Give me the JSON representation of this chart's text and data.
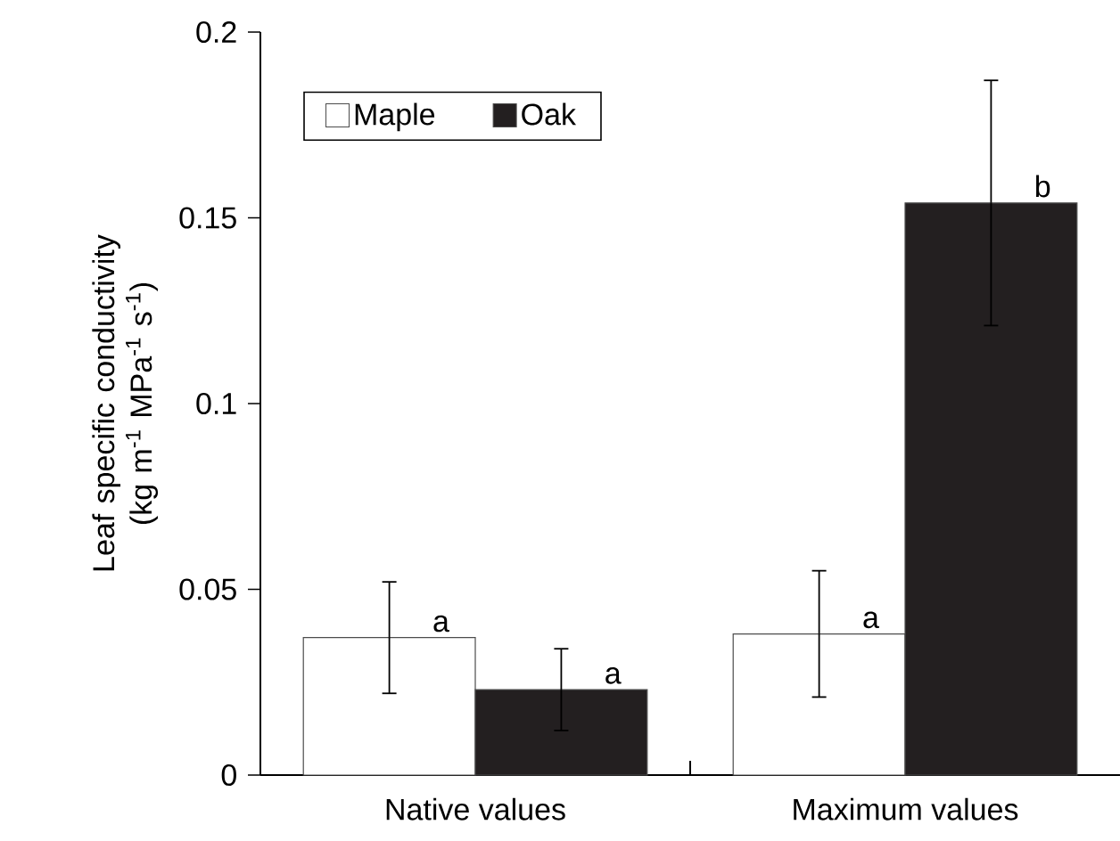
{
  "chart_data": {
    "type": "bar",
    "ylabel": "Leaf specific conductivity (kg m$^{-1}$ MPa$^{-1}$ s$^{-1}$)",
    "categories": [
      "Native values",
      "Maximum values"
    ],
    "series": [
      {
        "name": "Maple",
        "color": "#ffffff",
        "values": [
          0.037,
          0.038
        ],
        "errors": [
          0.015,
          0.017
        ]
      },
      {
        "name": "Oak",
        "color": "#231f20",
        "values": [
          0.023,
          0.154
        ],
        "errors": [
          0.011,
          0.033
        ]
      }
    ],
    "ylim": [
      0,
      0.2
    ],
    "yticks": [
      0,
      0.05,
      0.1,
      0.15,
      0.2
    ],
    "annotations": [
      "a",
      "a",
      "a",
      "b"
    ],
    "legend": "top left",
    "grid": false
  }
}
